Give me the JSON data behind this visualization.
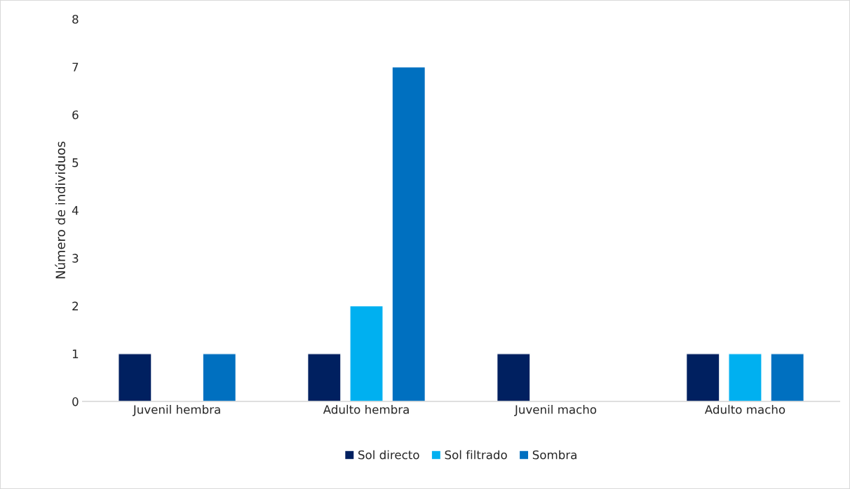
{
  "chart_data": {
    "type": "bar",
    "ylabel": "Número de individuos",
    "categories": [
      "Juvenil hembra",
      "Adulto hembra",
      "Juvenil macho",
      "Adulto macho"
    ],
    "series": [
      {
        "name": "Sol directo",
        "color": "#002060",
        "values": [
          1,
          1,
          1,
          1
        ]
      },
      {
        "name": "Sol filtrado",
        "color": "#00b0f0",
        "values": [
          null,
          2,
          null,
          1
        ]
      },
      {
        "name": "Sombra",
        "color": "#0070c0",
        "values": [
          1,
          7,
          null,
          1
        ]
      }
    ],
    "ylim": [
      0,
      8
    ],
    "yticks": [
      0,
      1,
      2,
      3,
      4,
      5,
      6,
      7,
      8
    ],
    "grid": false,
    "legend": "bottom"
  }
}
